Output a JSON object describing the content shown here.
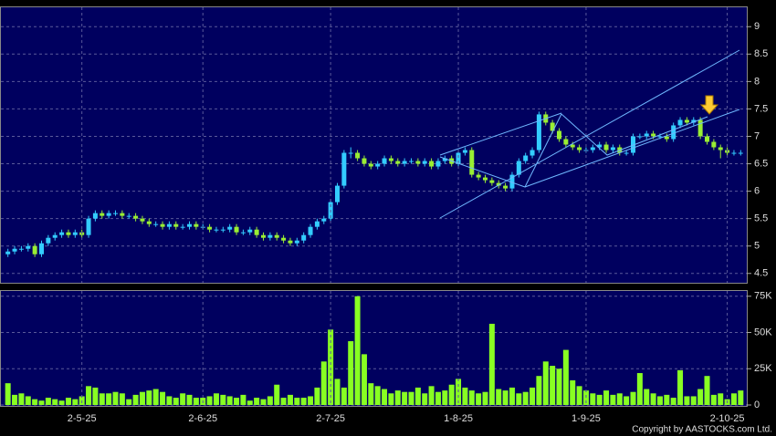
{
  "chart_data": [
    {
      "type": "candlestick",
      "up_color": "#33ccff",
      "down_color": "#99ee33",
      "ylim": [
        4.33,
        9.37
      ],
      "yticks": [
        4.5,
        5,
        5.5,
        6,
        6.5,
        7,
        7.5,
        8,
        8.5,
        9
      ],
      "grid": true,
      "ohlc": [
        [
          4.85,
          4.95,
          4.8,
          4.9
        ],
        [
          4.9,
          5.0,
          4.85,
          4.95
        ],
        [
          4.95,
          5.0,
          4.9,
          4.95
        ],
        [
          4.95,
          5.05,
          4.9,
          5.0
        ],
        [
          5.0,
          5.05,
          4.8,
          4.85
        ],
        [
          4.85,
          5.1,
          4.8,
          5.05
        ],
        [
          5.05,
          5.2,
          5.0,
          5.15
        ],
        [
          5.15,
          5.25,
          5.1,
          5.2
        ],
        [
          5.2,
          5.3,
          5.15,
          5.25
        ],
        [
          5.25,
          5.3,
          5.15,
          5.2
        ],
        [
          5.2,
          5.3,
          5.15,
          5.25
        ],
        [
          5.25,
          5.3,
          5.15,
          5.2
        ],
        [
          5.2,
          5.55,
          5.15,
          5.5
        ],
        [
          5.5,
          5.65,
          5.45,
          5.6
        ],
        [
          5.6,
          5.65,
          5.5,
          5.55
        ],
        [
          5.55,
          5.65,
          5.5,
          5.6
        ],
        [
          5.6,
          5.65,
          5.55,
          5.6
        ],
        [
          5.6,
          5.65,
          5.5,
          5.55
        ],
        [
          5.55,
          5.6,
          5.5,
          5.55
        ],
        [
          5.55,
          5.6,
          5.45,
          5.5
        ],
        [
          5.5,
          5.55,
          5.4,
          5.45
        ],
        [
          5.45,
          5.5,
          5.35,
          5.4
        ],
        [
          5.4,
          5.45,
          5.35,
          5.4
        ],
        [
          5.4,
          5.45,
          5.3,
          5.35
        ],
        [
          5.35,
          5.45,
          5.3,
          5.4
        ],
        [
          5.4,
          5.45,
          5.3,
          5.35
        ],
        [
          5.35,
          5.4,
          5.3,
          5.35
        ],
        [
          5.35,
          5.45,
          5.3,
          5.4
        ],
        [
          5.4,
          5.45,
          5.3,
          5.35
        ],
        [
          5.35,
          5.4,
          5.3,
          5.35
        ],
        [
          5.35,
          5.4,
          5.25,
          5.3
        ],
        [
          5.3,
          5.35,
          5.25,
          5.3
        ],
        [
          5.3,
          5.35,
          5.25,
          5.3
        ],
        [
          5.3,
          5.4,
          5.25,
          5.35
        ],
        [
          5.35,
          5.4,
          5.2,
          5.25
        ],
        [
          5.25,
          5.3,
          5.2,
          5.25
        ],
        [
          5.25,
          5.35,
          5.2,
          5.3
        ],
        [
          5.3,
          5.35,
          5.15,
          5.2
        ],
        [
          5.2,
          5.25,
          5.1,
          5.15
        ],
        [
          5.15,
          5.25,
          5.1,
          5.2
        ],
        [
          5.2,
          5.25,
          5.1,
          5.15
        ],
        [
          5.15,
          5.2,
          5.05,
          5.1
        ],
        [
          5.1,
          5.15,
          5.0,
          5.05
        ],
        [
          5.05,
          5.15,
          5.0,
          5.1
        ],
        [
          5.1,
          5.25,
          5.05,
          5.2
        ],
        [
          5.2,
          5.4,
          5.15,
          5.35
        ],
        [
          5.35,
          5.5,
          5.3,
          5.45
        ],
        [
          5.45,
          5.55,
          5.4,
          5.5
        ],
        [
          5.5,
          5.85,
          5.45,
          5.8
        ],
        [
          5.8,
          6.15,
          5.75,
          6.1
        ],
        [
          6.1,
          6.75,
          6.05,
          6.7
        ],
        [
          6.7,
          6.8,
          6.6,
          6.7
        ],
        [
          6.7,
          6.75,
          6.55,
          6.6
        ],
        [
          6.6,
          6.65,
          6.45,
          6.5
        ],
        [
          6.5,
          6.55,
          6.4,
          6.45
        ],
        [
          6.45,
          6.55,
          6.4,
          6.5
        ],
        [
          6.5,
          6.65,
          6.45,
          6.6
        ],
        [
          6.6,
          6.65,
          6.5,
          6.55
        ],
        [
          6.55,
          6.6,
          6.45,
          6.5
        ],
        [
          6.5,
          6.6,
          6.45,
          6.55
        ],
        [
          6.55,
          6.6,
          6.5,
          6.55
        ],
        [
          6.55,
          6.6,
          6.45,
          6.5
        ],
        [
          6.5,
          6.6,
          6.45,
          6.55
        ],
        [
          6.55,
          6.6,
          6.4,
          6.45
        ],
        [
          6.45,
          6.6,
          6.4,
          6.55
        ],
        [
          6.55,
          6.65,
          6.5,
          6.6
        ],
        [
          6.6,
          6.65,
          6.45,
          6.5
        ],
        [
          6.5,
          6.75,
          6.45,
          6.7
        ],
        [
          6.7,
          6.8,
          6.65,
          6.75
        ],
        [
          6.75,
          6.8,
          6.25,
          6.3
        ],
        [
          6.3,
          6.35,
          6.2,
          6.25
        ],
        [
          6.25,
          6.3,
          6.15,
          6.2
        ],
        [
          6.2,
          6.25,
          6.1,
          6.15
        ],
        [
          6.15,
          6.2,
          6.05,
          6.1
        ],
        [
          6.1,
          6.15,
          6.0,
          6.05
        ],
        [
          6.05,
          6.35,
          6.0,
          6.3
        ],
        [
          6.3,
          6.6,
          6.25,
          6.55
        ],
        [
          6.55,
          6.7,
          6.5,
          6.65
        ],
        [
          6.65,
          6.8,
          6.6,
          6.75
        ],
        [
          6.75,
          7.45,
          6.7,
          7.4
        ],
        [
          7.4,
          7.45,
          7.2,
          7.25
        ],
        [
          7.25,
          7.3,
          7.05,
          7.1
        ],
        [
          7.1,
          7.15,
          6.9,
          6.95
        ],
        [
          6.95,
          7.0,
          6.8,
          6.85
        ],
        [
          6.85,
          6.9,
          6.75,
          6.8
        ],
        [
          6.8,
          6.85,
          6.7,
          6.75
        ],
        [
          6.75,
          6.8,
          6.7,
          6.75
        ],
        [
          6.75,
          6.85,
          6.7,
          6.8
        ],
        [
          6.8,
          6.9,
          6.75,
          6.85
        ],
        [
          6.85,
          6.9,
          6.7,
          6.75
        ],
        [
          6.75,
          6.85,
          6.7,
          6.8
        ],
        [
          6.8,
          6.85,
          6.65,
          6.7
        ],
        [
          6.7,
          6.75,
          6.65,
          6.7
        ],
        [
          6.7,
          7.05,
          6.65,
          7.0
        ],
        [
          7.0,
          7.05,
          6.95,
          7.0
        ],
        [
          7.0,
          7.1,
          6.95,
          7.05
        ],
        [
          7.05,
          7.1,
          6.95,
          7.0
        ],
        [
          7.0,
          7.05,
          6.95,
          7.0
        ],
        [
          7.0,
          7.05,
          6.9,
          6.95
        ],
        [
          6.95,
          7.25,
          6.9,
          7.2
        ],
        [
          7.2,
          7.35,
          7.15,
          7.3
        ],
        [
          7.3,
          7.35,
          7.2,
          7.25
        ],
        [
          7.25,
          7.35,
          7.2,
          7.3
        ],
        [
          7.3,
          7.35,
          6.95,
          7.0
        ],
        [
          7.0,
          7.05,
          6.85,
          6.9
        ],
        [
          6.9,
          6.95,
          6.75,
          6.8
        ],
        [
          6.8,
          6.85,
          6.6,
          6.75
        ],
        [
          6.75,
          6.8,
          6.65,
          6.7
        ],
        [
          6.7,
          6.75,
          6.65,
          6.7
        ],
        [
          6.7,
          6.75,
          6.65,
          6.7
        ]
      ]
    },
    {
      "type": "bar",
      "color": "#88ff22",
      "ylim": [
        0,
        78000
      ],
      "grid": true,
      "yticks": [
        0,
        {
          "value": 25000,
          "label": "25K"
        },
        {
          "value": 50000,
          "label": "50K"
        },
        {
          "value": 75000,
          "label": "75K"
        }
      ],
      "categories": [
        null,
        null,
        null,
        null,
        null,
        null,
        null,
        null,
        null,
        null,
        null,
        "2-5-25",
        null,
        null,
        null,
        null,
        null,
        null,
        null,
        null,
        null,
        null,
        null,
        null,
        null,
        null,
        null,
        null,
        null,
        "2-6-25",
        null,
        null,
        null,
        null,
        null,
        null,
        null,
        null,
        null,
        null,
        null,
        null,
        null,
        null,
        null,
        null,
        null,
        null,
        "2-7-25",
        null,
        null,
        null,
        null,
        null,
        null,
        null,
        null,
        null,
        null,
        null,
        null,
        null,
        null,
        null,
        null,
        null,
        null,
        "1-8-25",
        null,
        null,
        null,
        null,
        null,
        null,
        null,
        null,
        null,
        null,
        null,
        null,
        null,
        null,
        null,
        null,
        null,
        null,
        "1-9-25",
        null,
        null,
        null,
        null,
        null,
        null,
        null,
        null,
        null,
        null,
        null,
        null,
        null,
        null,
        null,
        null,
        null,
        null,
        null,
        null,
        "2-10-25",
        null,
        null
      ],
      "values": [
        15000,
        7000,
        8000,
        6000,
        4000,
        3000,
        5000,
        4000,
        3000,
        5000,
        4000,
        6000,
        13000,
        12000,
        8000,
        8000,
        9000,
        8000,
        4000,
        7000,
        9000,
        10000,
        11000,
        9000,
        6000,
        5000,
        8000,
        7000,
        5000,
        5000,
        6000,
        8000,
        7000,
        6000,
        5000,
        7000,
        3000,
        5000,
        4000,
        6000,
        14000,
        5000,
        7000,
        5000,
        5000,
        6000,
        12000,
        30000,
        52000,
        18000,
        12000,
        44000,
        75000,
        35000,
        15000,
        13000,
        11000,
        8000,
        10000,
        9000,
        9000,
        12000,
        8000,
        13000,
        9000,
        10000,
        14000,
        18000,
        12000,
        10000,
        8000,
        9000,
        56000,
        11000,
        10000,
        12000,
        8000,
        9000,
        12000,
        20000,
        30000,
        27000,
        25000,
        38000,
        17000,
        13000,
        10000,
        8000,
        7000,
        10000,
        7000,
        8000,
        6000,
        9000,
        22000,
        11000,
        8000,
        6000,
        7000,
        5000,
        24000,
        6000,
        6000,
        11000,
        20000,
        7000,
        8000,
        4000,
        8000,
        10000
      ]
    }
  ],
  "footer": {
    "copyright": "Copyright by AASTOCKS.com Ltd."
  }
}
